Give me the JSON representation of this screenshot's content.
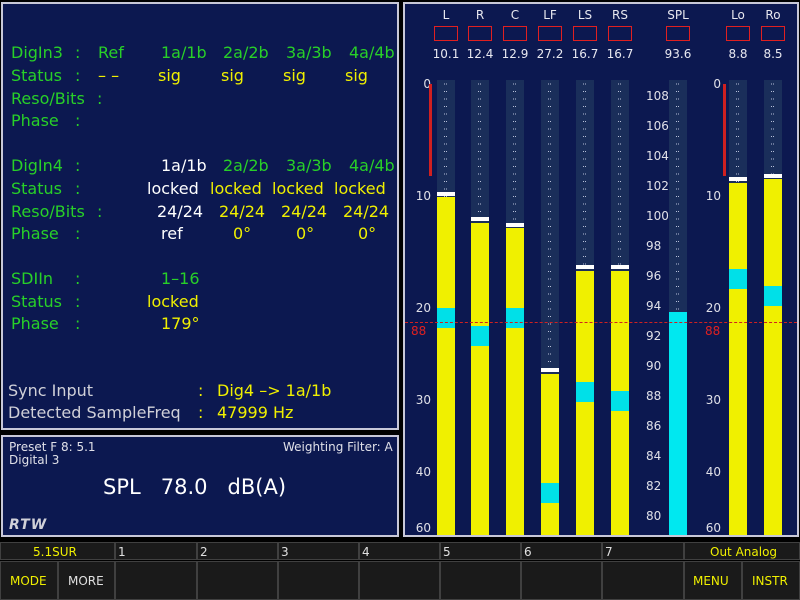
{
  "status": {
    "digin3": {
      "label": "DigIn3",
      "colon": ":",
      "ref": "Ref",
      "channels": [
        "1a/1b",
        "2a/2b",
        "3a/3b",
        "4a/4b"
      ],
      "status_label": "Status",
      "status_ref": "– –",
      "status": [
        "sig",
        "sig",
        "sig",
        "sig"
      ],
      "reso_label": "Reso/Bits",
      "phase_label": "Phase"
    },
    "digin4": {
      "label": "DigIn4",
      "colon": ":",
      "channels": [
        "1a/1b",
        "2a/2b",
        "3a/3b",
        "4a/4b"
      ],
      "status_label": "Status",
      "status": [
        "locked",
        "locked",
        "locked",
        "locked"
      ],
      "reso_label": "Reso/Bits",
      "reso": [
        "24/24",
        "24/24",
        "24/24",
        "24/24"
      ],
      "phase_label": "Phase",
      "phase": [
        "ref",
        "0°",
        "0°",
        "0°"
      ]
    },
    "sdiin": {
      "label": "SDIIn",
      "colon": ":",
      "channels": "1–16",
      "status_label": "Status",
      "status": "locked",
      "phase_label": "Phase",
      "phase": "179°"
    },
    "sync_input_label": "Sync Input",
    "sync_input_value": "Dig4 –> 1a/1b",
    "detected_label": "Detected SampleFreq",
    "detected_value": "47999 Hz"
  },
  "spl_panel": {
    "preset": "Preset F 8: 5.1",
    "source": "Digital 3",
    "weighting": "Weighting Filter: A",
    "spl_label": "SPL",
    "spl_value": "78.0",
    "spl_unit": "dB(A)",
    "logo": "RTW"
  },
  "meter": {
    "channels": [
      {
        "name": "L",
        "peak": "10.1",
        "level": 10.1,
        "cyan": 20.0,
        "peakhold": 10.0
      },
      {
        "name": "R",
        "peak": "12.4",
        "level": 12.4,
        "cyan": 22.0,
        "peakhold": 12.2
      },
      {
        "name": "C",
        "peak": "12.9",
        "level": 12.9,
        "cyan": 20.0,
        "peakhold": 12.8
      },
      {
        "name": "LF",
        "peak": "27.2",
        "level": 27.2,
        "cyan": 44.0,
        "peakhold": 27.0
      },
      {
        "name": "LS",
        "peak": "16.7",
        "level": 16.7,
        "cyan": 28.0,
        "peakhold": 16.5
      },
      {
        "name": "RS",
        "peak": "16.7",
        "level": 16.7,
        "cyan": 29.0,
        "peakhold": 16.5
      }
    ],
    "spl": {
      "name": "SPL",
      "peak": "93.6",
      "level": 93.6
    },
    "stereo": [
      {
        "name": "Lo",
        "peak": "8.8",
        "level": 8.8,
        "cyan": 16.5,
        "peakhold": 8.7
      },
      {
        "name": "Ro",
        "peak": "8.5",
        "level": 8.5,
        "cyan": 18.0,
        "peakhold": 8.4
      }
    ],
    "db_scale": [
      "0",
      "10",
      "20",
      "30",
      "40",
      "60"
    ],
    "spl_scale": [
      "108",
      "106",
      "104",
      "102",
      "100",
      "98",
      "96",
      "94",
      "92",
      "90",
      "88",
      "86",
      "84",
      "82",
      "80"
    ],
    "ref_label": "88",
    "ref_level_db": 21.5
  },
  "softkeys": {
    "top": [
      "5.1SUR",
      "1",
      "2",
      "3",
      "4",
      "5",
      "6",
      "7",
      "Out Analog"
    ],
    "bottom": [
      "MODE",
      "MORE",
      "MENU",
      "INSTR"
    ]
  },
  "colors": {
    "bar": "#f0f000",
    "cyan": "#00e0e8",
    "red": "#d02020",
    "panel": "#0c1850"
  }
}
